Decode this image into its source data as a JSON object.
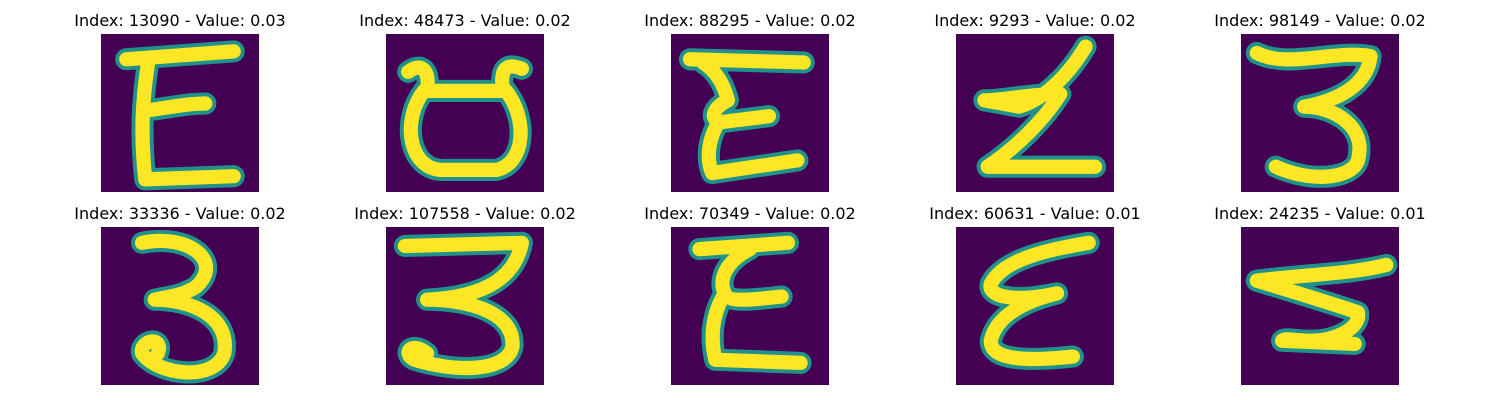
{
  "panels": [
    {
      "title": "Index: 13090 - Value: 0.03",
      "glyph": "E"
    },
    {
      "title": "Index: 48473 - Value: 0.02",
      "glyph": "pot"
    },
    {
      "title": "Index: 88295 - Value: 0.02",
      "glyph": "curlyE"
    },
    {
      "title": "Index: 9293 - Value: 0.02",
      "glyph": "zigZ"
    },
    {
      "title": "Index: 98149 - Value: 0.02",
      "glyph": "three"
    },
    {
      "title": "Index: 33336 - Value: 0.02",
      "glyph": "three2"
    },
    {
      "title": "Index: 107558 - Value: 0.02",
      "glyph": "three3"
    },
    {
      "title": "Index: 70349 - Value: 0.02",
      "glyph": "curlyE2"
    },
    {
      "title": "Index: 60631 - Value: 0.01",
      "glyph": "curlyE3"
    },
    {
      "title": "Index: 24235 - Value: 0.01",
      "glyph": "five"
    }
  ],
  "colors": {
    "background": "#440154",
    "halo": "#21918c",
    "stroke": "#fde725"
  }
}
